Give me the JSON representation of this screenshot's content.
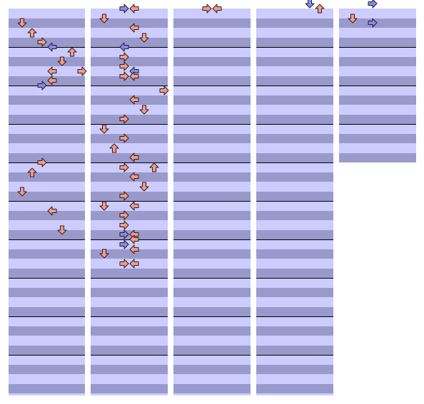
{
  "colors": {
    "stripe_light": "#ccccff",
    "stripe_dark": "#9999cc",
    "beat_line": "#000000",
    "note_red": "#ff9988",
    "note_blue": "#8888ee",
    "note_outline": "#222222"
  },
  "chart": {
    "columns": [
      {
        "id": "col-1",
        "measures": 10,
        "notes": [
          {
            "dir": "down",
            "lane": 1,
            "row": 1.5,
            "color": "red"
          },
          {
            "dir": "up",
            "lane": 2,
            "row": 2.5,
            "color": "red"
          },
          {
            "dir": "right",
            "lane": 3,
            "row": 3.5,
            "color": "red"
          },
          {
            "dir": "left",
            "lane": 4,
            "row": 4.0,
            "color": "blue"
          },
          {
            "dir": "up",
            "lane": 6,
            "row": 4.5,
            "color": "red"
          },
          {
            "dir": "down",
            "lane": 5,
            "row": 5.5,
            "color": "red"
          },
          {
            "dir": "left",
            "lane": 4,
            "row": 6.5,
            "color": "red"
          },
          {
            "dir": "right",
            "lane": 7,
            "row": 6.5,
            "color": "red"
          },
          {
            "dir": "left",
            "lane": 4,
            "row": 7.5,
            "color": "red"
          },
          {
            "dir": "right",
            "lane": 3,
            "row": 8.0,
            "color": "blue"
          },
          {
            "dir": "right",
            "lane": 3,
            "row": 16.0,
            "color": "red"
          },
          {
            "dir": "up",
            "lane": 2,
            "row": 17.0,
            "color": "red"
          },
          {
            "dir": "down",
            "lane": 1,
            "row": 19.0,
            "color": "red"
          },
          {
            "dir": "left",
            "lane": 4,
            "row": 21.0,
            "color": "red"
          },
          {
            "dir": "down",
            "lane": 5,
            "row": 23.0,
            "color": "red"
          }
        ]
      },
      {
        "id": "col-2",
        "measures": 10,
        "notes": [
          {
            "dir": "right",
            "lane": 3,
            "row": 0,
            "color": "blue"
          },
          {
            "dir": "left",
            "lane": 4,
            "row": 0,
            "color": "red"
          },
          {
            "dir": "down",
            "lane": 1,
            "row": 1,
            "color": "red"
          },
          {
            "dir": "left",
            "lane": 4,
            "row": 2,
            "color": "red"
          },
          {
            "dir": "down",
            "lane": 5,
            "row": 3,
            "color": "red"
          },
          {
            "dir": "left",
            "lane": 3,
            "row": 4,
            "color": "blue"
          },
          {
            "dir": "right",
            "lane": 3,
            "row": 5,
            "color": "red"
          },
          {
            "dir": "right",
            "lane": 3,
            "row": 6,
            "color": "red"
          },
          {
            "dir": "left",
            "lane": 4,
            "row": 6.5,
            "color": "blue"
          },
          {
            "dir": "right",
            "lane": 3,
            "row": 7,
            "color": "red"
          },
          {
            "dir": "left",
            "lane": 4,
            "row": 7,
            "color": "red"
          },
          {
            "dir": "right",
            "lane": 7,
            "row": 8.5,
            "color": "red"
          },
          {
            "dir": "left",
            "lane": 4,
            "row": 9.5,
            "color": "red"
          },
          {
            "dir": "down",
            "lane": 5,
            "row": 10.5,
            "color": "red"
          },
          {
            "dir": "right",
            "lane": 3,
            "row": 11.5,
            "color": "red"
          },
          {
            "dir": "down",
            "lane": 1,
            "row": 12.5,
            "color": "red"
          },
          {
            "dir": "right",
            "lane": 3,
            "row": 13.5,
            "color": "red"
          },
          {
            "dir": "up",
            "lane": 2,
            "row": 14.5,
            "color": "red"
          },
          {
            "dir": "left",
            "lane": 4,
            "row": 15.5,
            "color": "red"
          },
          {
            "dir": "right",
            "lane": 3,
            "row": 16.5,
            "color": "red"
          },
          {
            "dir": "up",
            "lane": 6,
            "row": 16.5,
            "color": "red"
          },
          {
            "dir": "left",
            "lane": 4,
            "row": 17.5,
            "color": "red"
          },
          {
            "dir": "down",
            "lane": 5,
            "row": 18.5,
            "color": "red"
          },
          {
            "dir": "right",
            "lane": 3,
            "row": 19.5,
            "color": "red"
          },
          {
            "dir": "down",
            "lane": 1,
            "row": 20.5,
            "color": "red"
          },
          {
            "dir": "left",
            "lane": 4,
            "row": 20.5,
            "color": "red"
          },
          {
            "dir": "right",
            "lane": 3,
            "row": 21.5,
            "color": "red"
          },
          {
            "dir": "right",
            "lane": 3,
            "row": 22.5,
            "color": "red"
          },
          {
            "dir": "right",
            "lane": 3,
            "row": 23.5,
            "color": "blue"
          },
          {
            "dir": "left",
            "lane": 4,
            "row": 23.5,
            "color": "red"
          },
          {
            "dir": "left",
            "lane": 4,
            "row": 24.0,
            "color": "red"
          },
          {
            "dir": "right",
            "lane": 3,
            "row": 24.5,
            "color": "blue"
          },
          {
            "dir": "left",
            "lane": 4,
            "row": 25.0,
            "color": "red"
          },
          {
            "dir": "down",
            "lane": 1,
            "row": 25.5,
            "color": "red"
          },
          {
            "dir": "right",
            "lane": 3,
            "row": 26.5,
            "color": "red"
          },
          {
            "dir": "left",
            "lane": 4,
            "row": 26.5,
            "color": "red"
          }
        ]
      },
      {
        "id": "col-3",
        "measures": 10,
        "notes": [
          {
            "dir": "right",
            "lane": 3,
            "row": 0,
            "color": "red"
          },
          {
            "dir": "left",
            "lane": 4,
            "row": 0,
            "color": "red"
          }
        ]
      },
      {
        "id": "col-4",
        "measures": 10,
        "notes": [
          {
            "dir": "down",
            "lane": 5,
            "row": -0.5,
            "color": "blue"
          },
          {
            "dir": "up",
            "lane": 6,
            "row": 0,
            "color": "red"
          }
        ]
      },
      {
        "id": "col-5",
        "measures": 4,
        "notes": [
          {
            "dir": "right",
            "lane": 3,
            "row": -0.5,
            "color": "blue"
          },
          {
            "dir": "down",
            "lane": 1,
            "row": 1,
            "color": "red"
          },
          {
            "dir": "right",
            "lane": 3,
            "row": 1.5,
            "color": "blue"
          }
        ]
      }
    ]
  }
}
